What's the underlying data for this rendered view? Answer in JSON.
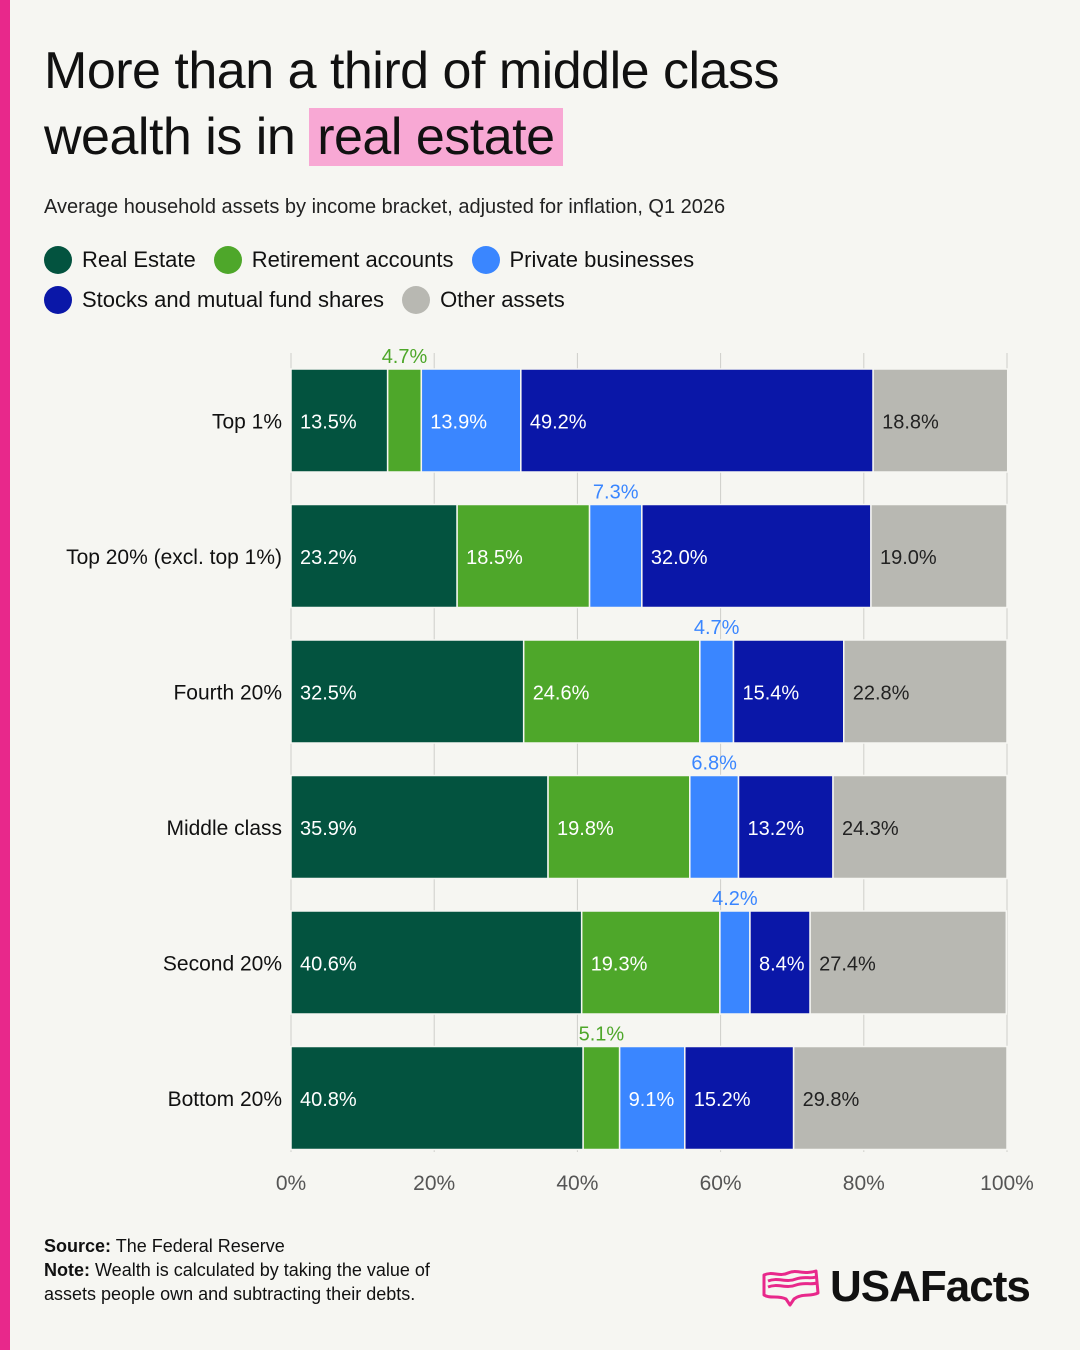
{
  "title": {
    "line1": "More than a third of middle class",
    "line2_prefix": "wealth is in ",
    "line2_highlight": "real estate"
  },
  "subtitle": "Average household assets by income bracket, adjusted for inflation, Q1 2026",
  "footer": {
    "source_label": "Source:",
    "source_text": "The Federal Reserve",
    "note_label": "Note:",
    "note_line1": "Wealth is calculated by taking the value of",
    "note_line2": "assets people own and subtracting their debts."
  },
  "brand": {
    "name": "USAFacts",
    "logo_icon": "usa-flag-map-icon",
    "accent": "#e8288b"
  },
  "chart_data": {
    "type": "bar",
    "orientation": "horizontal",
    "stacked": true,
    "categories": [
      "Top 1%",
      "Top 20% (excl. top 1%)",
      "Fourth 20%",
      "Middle class",
      "Second 20%",
      "Bottom 20%"
    ],
    "series": [
      {
        "name": "Real Estate",
        "color": "#03533f",
        "label_color": "#ffffff",
        "values": [
          13.5,
          23.2,
          32.5,
          35.9,
          40.6,
          40.8
        ]
      },
      {
        "name": "Retirement accounts",
        "color": "#4ea72a",
        "label_color": "#ffffff",
        "values": [
          4.7,
          18.5,
          24.6,
          19.8,
          19.3,
          5.1
        ]
      },
      {
        "name": "Private businesses",
        "color": "#3a86ff",
        "label_color": "#ffffff",
        "values": [
          13.9,
          7.3,
          4.7,
          6.8,
          4.2,
          9.1
        ]
      },
      {
        "name": "Stocks and mutual fund shares",
        "color": "#0a17a8",
        "label_color": "#ffffff",
        "values": [
          49.2,
          32.0,
          15.4,
          13.2,
          8.4,
          15.2
        ]
      },
      {
        "name": "Other assets",
        "color": "#b8b8b2",
        "label_color": "#222222",
        "values": [
          18.8,
          19.0,
          22.8,
          24.3,
          27.4,
          29.8
        ]
      }
    ],
    "labels": [
      [
        "13.5%",
        "4.7%",
        "13.9%",
        "49.2%",
        "18.8%"
      ],
      [
        "23.2%",
        "18.5%",
        "7.3%",
        "32.0%",
        "19.0%"
      ],
      [
        "32.5%",
        "24.6%",
        "4.7%",
        "15.4%",
        "22.8%"
      ],
      [
        "35.9%",
        "19.8%",
        "6.8%",
        "13.2%",
        "24.3%"
      ],
      [
        "40.6%",
        "19.3%",
        "4.2%",
        "8.4%",
        "27.4%"
      ],
      [
        "40.8%",
        "5.1%",
        "9.1%",
        "15.2%",
        "29.8%"
      ]
    ],
    "label_outside": [
      [
        false,
        true,
        false,
        false,
        false
      ],
      [
        false,
        false,
        true,
        false,
        false
      ],
      [
        false,
        false,
        true,
        false,
        false
      ],
      [
        false,
        false,
        true,
        false,
        false
      ],
      [
        false,
        false,
        true,
        false,
        false
      ],
      [
        false,
        true,
        false,
        false,
        false
      ]
    ],
    "xlim": [
      0,
      100
    ],
    "xticks": [
      0,
      20,
      40,
      60,
      80,
      100
    ],
    "xtick_labels": [
      "0%",
      "20%",
      "40%",
      "60%",
      "80%",
      "100%"
    ],
    "grid": true,
    "legend_position": "top"
  }
}
